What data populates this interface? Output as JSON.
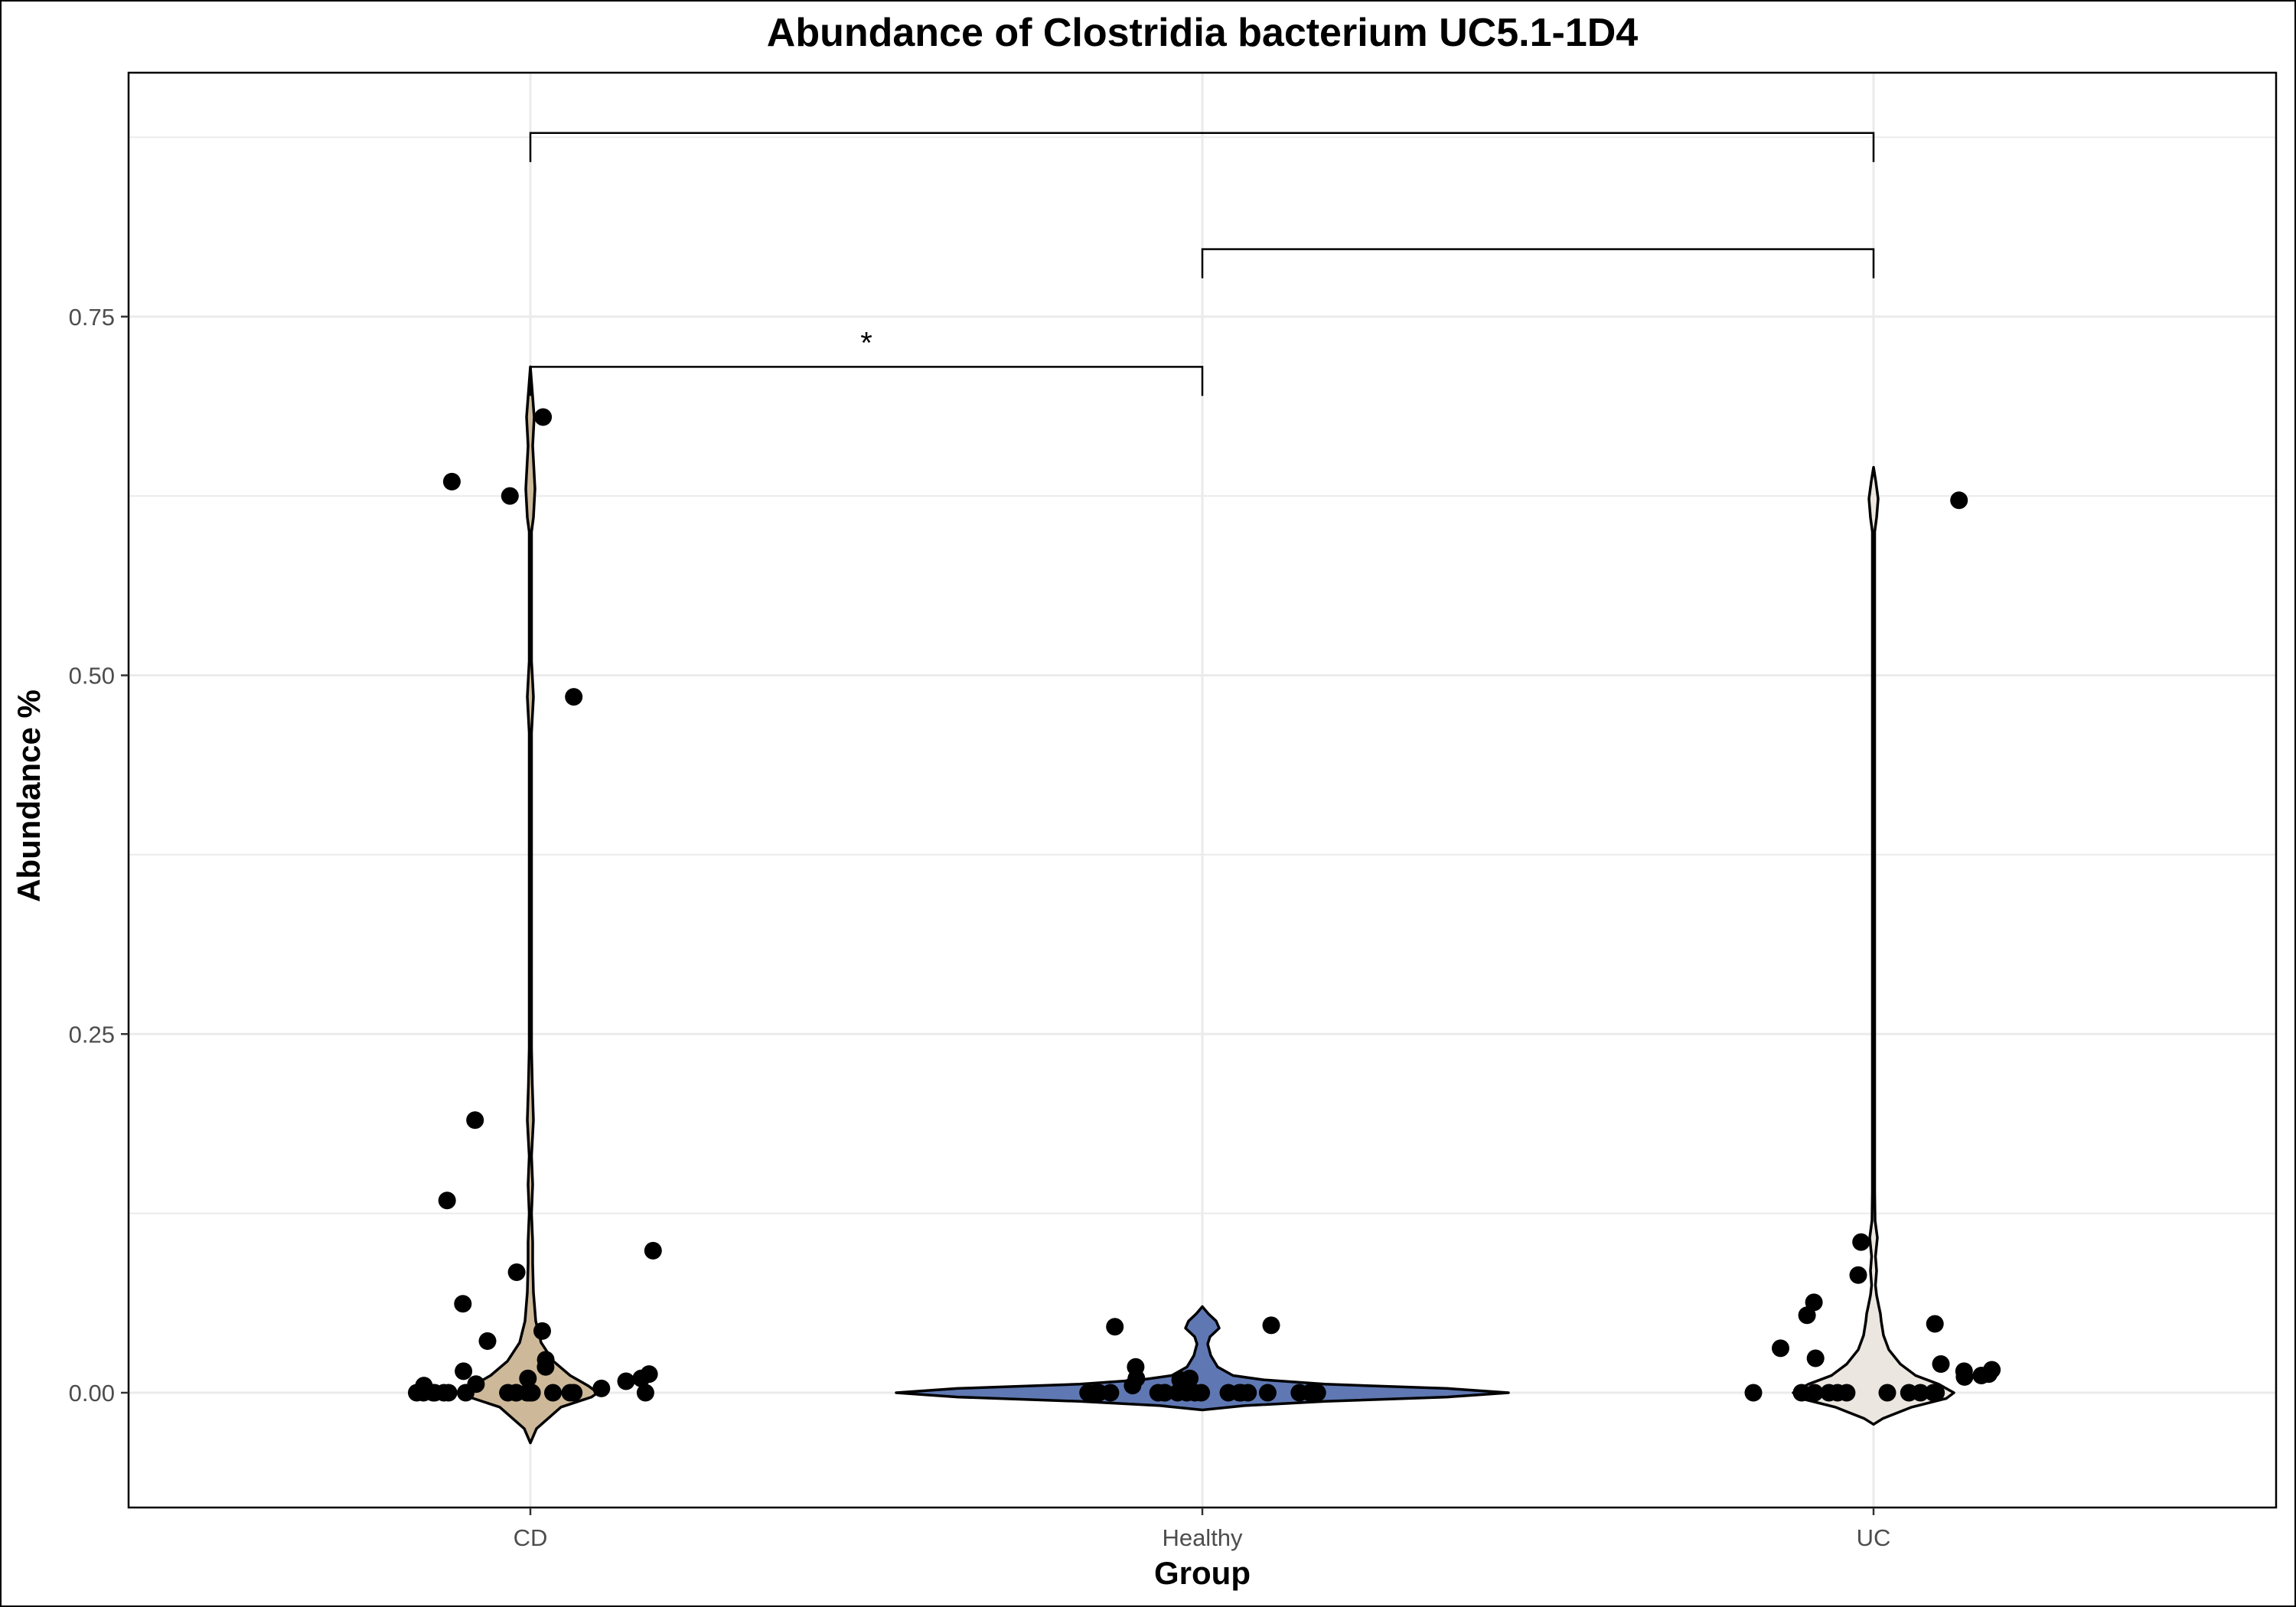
{
  "chart_data": {
    "type": "violin",
    "title": "Abundance of Clostridia bacterium UC5.1-1D4",
    "xlabel": "Group",
    "ylabel": "Abundance %",
    "categories": [
      "CD",
      "Healthy",
      "UC"
    ],
    "ylim": [
      -0.08,
      0.92
    ],
    "yticks": [
      0.0,
      0.25,
      0.5,
      0.75
    ],
    "ytick_labels": [
      "0.00",
      "0.25",
      "0.50",
      "0.75"
    ],
    "grid": true,
    "legend": "none",
    "colors": {
      "CD": "#cdb99a",
      "Healthy": "#5f78b3",
      "UC": "#ebe6df"
    },
    "series": [
      {
        "category": "CD",
        "points": [
          0.01,
          0.023,
          0.0,
          0.0,
          0.0,
          0.0,
          0.005,
          0.008,
          0.0,
          0.0,
          0.006,
          0.003,
          0.0,
          0.0,
          0.0,
          0.015,
          0.0,
          0.0,
          0.018,
          0.0,
          0.0,
          0.0,
          0.01,
          0.013,
          0.0,
          0.0,
          0.0,
          0.635,
          0.625,
          0.68,
          0.485,
          0.19,
          0.134,
          0.099,
          0.084,
          0.062,
          0.043,
          0.036
        ]
      },
      {
        "category": "Healthy",
        "points": [
          0.046,
          0.047,
          0.0,
          0.0,
          0.0,
          0.0,
          0.01,
          0.0,
          0.0,
          0.018,
          0.0,
          0.0,
          0.0,
          0.0,
          0.0,
          0.005,
          0.01,
          0.0,
          0.0,
          0.009,
          0.0,
          0.0,
          0.0,
          0.0,
          0.0,
          0.0,
          0.006
        ]
      },
      {
        "category": "UC",
        "points": [
          0.622,
          0.105,
          0.082,
          0.063,
          0.054,
          0.048,
          0.031,
          0.024,
          0.02,
          0.015,
          0.016,
          0.012,
          0.011,
          0.0,
          0.0,
          0.0,
          0.0,
          0.0,
          0.0,
          0.0,
          0.0,
          0.0,
          0.0,
          0.0,
          0.013
        ]
      }
    ],
    "brackets": [
      {
        "from": "CD",
        "to": "Healthy",
        "y": 0.715,
        "label": "*"
      },
      {
        "from": "Healthy",
        "to": "UC",
        "y": 0.797,
        "label": ""
      },
      {
        "from": "CD",
        "to": "UC",
        "y": 0.878,
        "label": ""
      }
    ]
  }
}
